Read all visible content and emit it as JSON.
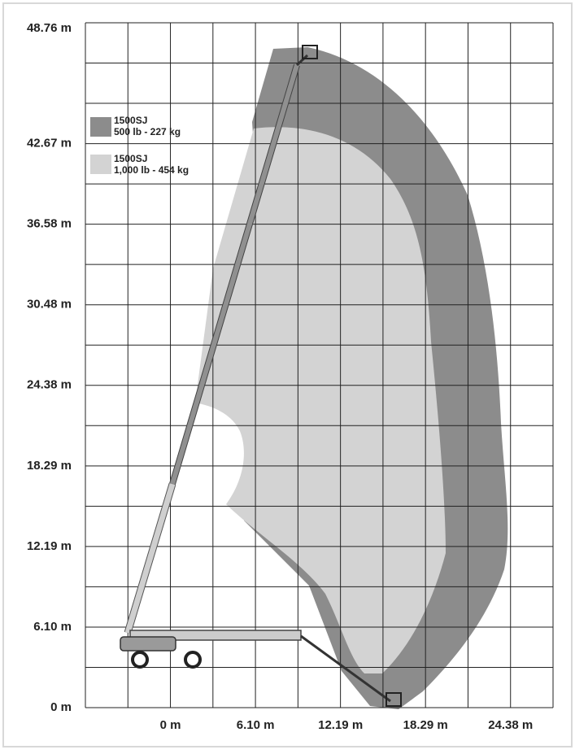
{
  "y_axis_labels": [
    "48.76 m",
    "42.67 m",
    "36.58 m",
    "30.48 m",
    "24.38 m",
    "18.29 m",
    "12.19 m",
    "6.10 m",
    "0 m"
  ],
  "x_axis_labels": [
    "0 m",
    "6.10 m",
    "12.19 m",
    "18.29 m",
    "24.38 m"
  ],
  "legend": [
    {
      "model": "1500SJ",
      "capacity": "500 lb - 227 kg"
    },
    {
      "model": "1500SJ",
      "capacity": "1,000 lb - 454 kg"
    }
  ]
}
